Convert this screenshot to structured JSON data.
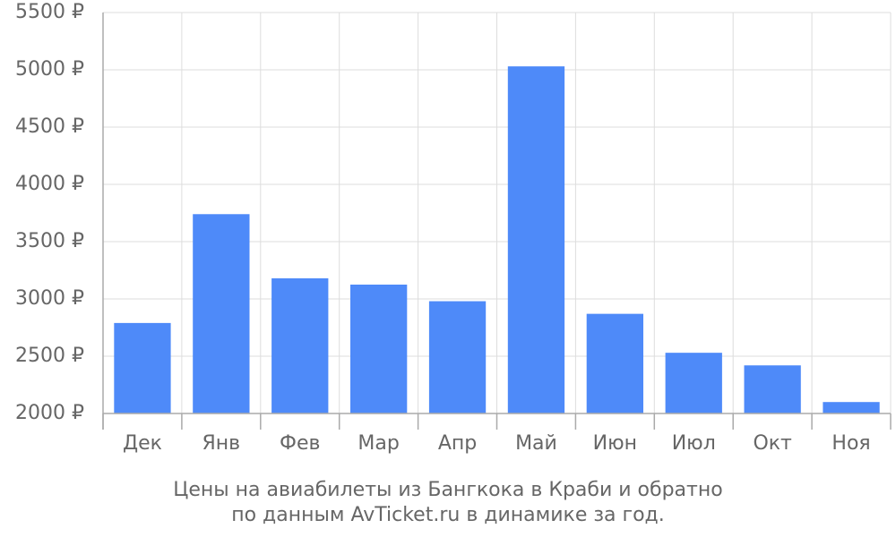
{
  "chart_data": {
    "type": "bar",
    "title": "Цены на авиабилеты из Бангкока в Краби и обратно",
    "subtitle": "по данным AvTicket.ru в динамике за год.",
    "categories": [
      "Дек",
      "Янв",
      "Фев",
      "Мар",
      "Апр",
      "Май",
      "Июн",
      "Июл",
      "Окт",
      "Ноя"
    ],
    "values": [
      2790,
      3740,
      3180,
      3125,
      2980,
      5030,
      2870,
      2530,
      2420,
      2100
    ],
    "color": "#4e8af9",
    "ylim": [
      2000,
      5500
    ],
    "yticks": [
      {
        "value": 2000,
        "label": "2000 ₽"
      },
      {
        "value": 2500,
        "label": "2500 ₽"
      },
      {
        "value": 3000,
        "label": "3000 ₽"
      },
      {
        "value": 3500,
        "label": "3500 ₽"
      },
      {
        "value": 4000,
        "label": "4000 ₽"
      },
      {
        "value": 4500,
        "label": "4500 ₽"
      },
      {
        "value": 5000,
        "label": "5000 ₽"
      },
      {
        "value": 5500,
        "label": "5500 ₽"
      }
    ],
    "grid": true
  }
}
